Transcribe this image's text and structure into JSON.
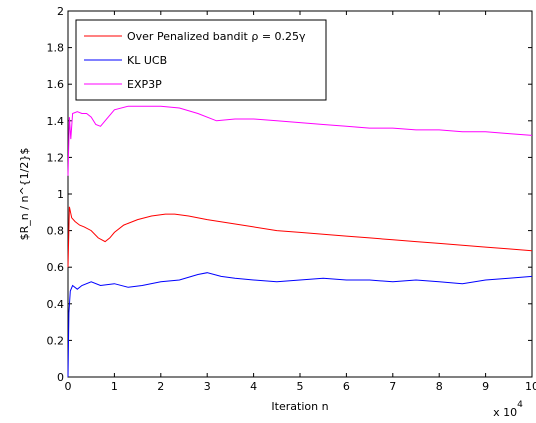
{
  "chart_data": {
    "type": "line",
    "title": "",
    "xlabel": "Iteration n",
    "ylabel": "$R_n / n^{1/2}$",
    "x_multiplier_label": "x 10",
    "x_multiplier_exp": "4",
    "xlim": [
      0,
      10
    ],
    "ylim": [
      0,
      2
    ],
    "xticks": [
      "0",
      "1",
      "2",
      "3",
      "4",
      "5",
      "6",
      "7",
      "8",
      "9",
      "10"
    ],
    "yticks": [
      "0",
      "0.2",
      "0.4",
      "0.6",
      "0.8",
      "1",
      "1.2",
      "1.4",
      "1.6",
      "1.8",
      "2"
    ],
    "grid": false,
    "legend_position": "top-left",
    "series": [
      {
        "name": "Over Penalized bandit ρ = 0.25γ",
        "color": "#ff0000",
        "x": [
          0,
          0.03,
          0.08,
          0.15,
          0.25,
          0.35,
          0.5,
          0.65,
          0.8,
          0.9,
          1.0,
          1.2,
          1.5,
          1.8,
          2.1,
          2.3,
          2.6,
          3.0,
          3.5,
          4.0,
          4.5,
          5.0,
          5.5,
          6.0,
          6.5,
          7.0,
          7.5,
          8.0,
          8.5,
          9.0,
          9.5,
          10.0
        ],
        "y": [
          0.6,
          0.93,
          0.87,
          0.85,
          0.83,
          0.82,
          0.8,
          0.76,
          0.74,
          0.76,
          0.79,
          0.83,
          0.86,
          0.88,
          0.89,
          0.89,
          0.88,
          0.86,
          0.84,
          0.82,
          0.8,
          0.79,
          0.78,
          0.77,
          0.76,
          0.75,
          0.74,
          0.73,
          0.72,
          0.71,
          0.7,
          0.69
        ]
      },
      {
        "name": "KL UCB",
        "color": "#0000ff",
        "x": [
          0,
          0.02,
          0.05,
          0.1,
          0.2,
          0.3,
          0.5,
          0.7,
          1.0,
          1.3,
          1.6,
          2.0,
          2.4,
          2.8,
          3.0,
          3.3,
          3.6,
          4.0,
          4.5,
          5.0,
          5.5,
          6.0,
          6.5,
          7.0,
          7.5,
          8.0,
          8.5,
          9.0,
          9.5,
          10.0
        ],
        "y": [
          0.0,
          0.35,
          0.47,
          0.5,
          0.48,
          0.5,
          0.52,
          0.5,
          0.51,
          0.49,
          0.5,
          0.52,
          0.53,
          0.56,
          0.57,
          0.55,
          0.54,
          0.53,
          0.52,
          0.53,
          0.54,
          0.53,
          0.53,
          0.52,
          0.53,
          0.52,
          0.51,
          0.53,
          0.54,
          0.55
        ]
      },
      {
        "name": "EXP3P",
        "color": "#ff00ff",
        "x": [
          0,
          0.03,
          0.06,
          0.1,
          0.2,
          0.3,
          0.4,
          0.5,
          0.6,
          0.7,
          0.8,
          1.0,
          1.3,
          1.6,
          2.0,
          2.4,
          2.8,
          3.2,
          3.6,
          4.0,
          4.5,
          5.0,
          5.5,
          6.0,
          6.5,
          7.0,
          7.5,
          8.0,
          8.5,
          9.0,
          9.5,
          10.0
        ],
        "y": [
          1.1,
          1.42,
          1.3,
          1.44,
          1.45,
          1.44,
          1.44,
          1.42,
          1.38,
          1.37,
          1.4,
          1.46,
          1.48,
          1.48,
          1.48,
          1.47,
          1.44,
          1.4,
          1.41,
          1.41,
          1.4,
          1.39,
          1.38,
          1.37,
          1.36,
          1.36,
          1.35,
          1.35,
          1.34,
          1.34,
          1.33,
          1.32
        ]
      }
    ]
  }
}
